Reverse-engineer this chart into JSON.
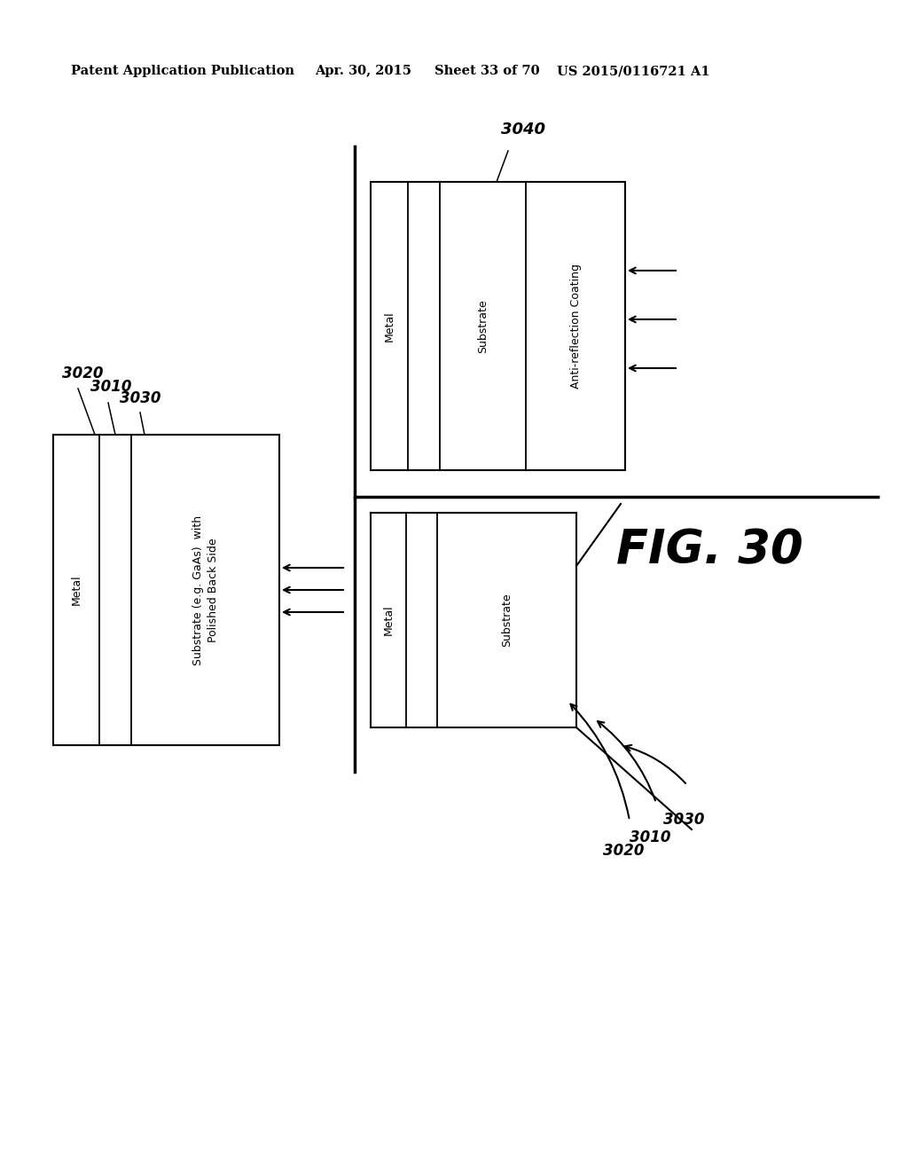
{
  "bg_color": "#ffffff",
  "header_text": "Patent Application Publication",
  "header_date": "Apr. 30, 2015",
  "header_sheet": "Sheet 33 of 70",
  "header_patent": "US 2015/0116721 A1",
  "fig_label": "FIG. 30"
}
